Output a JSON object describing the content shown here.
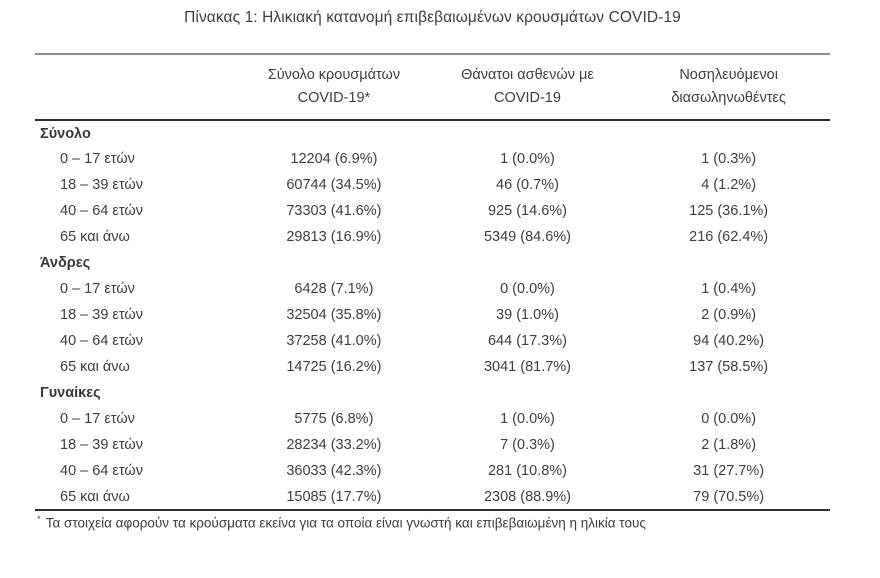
{
  "title": "Πίνακας 1: Ηλικιακή κατανομή επιβεβαιωμένων κρουσμάτων COVID-19",
  "table": {
    "columns": [
      {
        "line1": "",
        "line2": ""
      },
      {
        "line1": "Σύνολο κρουσμάτων",
        "line2": "COVID-19*"
      },
      {
        "line1": "Θάνατοι ασθενών με",
        "line2": "COVID-19"
      },
      {
        "line1": "Νοσηλευόμενοι",
        "line2": "διασωληνωθέντες"
      }
    ],
    "sections": [
      {
        "label": "Σύνολο",
        "rows": [
          {
            "age": "0 – 17 ετών",
            "cases": "12204 (6.9%)",
            "deaths": "1 (0.0%)",
            "intubated": "1 (0.3%)"
          },
          {
            "age": "18 – 39 ετών",
            "cases": "60744 (34.5%)",
            "deaths": "46 (0.7%)",
            "intubated": "4 (1.2%)"
          },
          {
            "age": "40 – 64 ετών",
            "cases": "73303 (41.6%)",
            "deaths": "925 (14.6%)",
            "intubated": "125 (36.1%)"
          },
          {
            "age": "65 και άνω",
            "cases": "29813 (16.9%)",
            "deaths": "5349 (84.6%)",
            "intubated": "216 (62.4%)"
          }
        ]
      },
      {
        "label": "Άνδρες",
        "rows": [
          {
            "age": "0 – 17 ετών",
            "cases": "6428 (7.1%)",
            "deaths": "0 (0.0%)",
            "intubated": "1 (0.4%)"
          },
          {
            "age": "18 – 39 ετών",
            "cases": "32504 (35.8%)",
            "deaths": "39 (1.0%)",
            "intubated": "2 (0.9%)"
          },
          {
            "age": "40 – 64 ετών",
            "cases": "37258 (41.0%)",
            "deaths": "644 (17.3%)",
            "intubated": "94 (40.2%)"
          },
          {
            "age": "65 και άνω",
            "cases": "14725 (16.2%)",
            "deaths": "3041 (81.7%)",
            "intubated": "137 (58.5%)"
          }
        ]
      },
      {
        "label": "Γυναίκες",
        "rows": [
          {
            "age": "0 – 17 ετών",
            "cases": "5775 (6.8%)",
            "deaths": "1 (0.0%)",
            "intubated": "0 (0.0%)"
          },
          {
            "age": "18 – 39 ετών",
            "cases": "28234 (33.2%)",
            "deaths": "7 (0.3%)",
            "intubated": "2 (1.8%)"
          },
          {
            "age": "40 – 64 ετών",
            "cases": "36033 (42.3%)",
            "deaths": "281 (10.8%)",
            "intubated": "31 (27.7%)"
          },
          {
            "age": "65 και άνω",
            "cases": "15085 (17.7%)",
            "deaths": "2308 (88.9%)",
            "intubated": "79 (70.5%)"
          }
        ]
      }
    ]
  },
  "footnote": {
    "marker": "*",
    "text": "Τα στοιχεία αφορούν τα κρούσματα εκείνα για τα οποία είναι γνωστή και επιβεβαιωμένη η ηλικία τους"
  },
  "colors": {
    "text": "#3b4046",
    "rule_top": "#8b8b8b",
    "rule_dark": "#2f2f2f",
    "background": "#ffffff"
  }
}
